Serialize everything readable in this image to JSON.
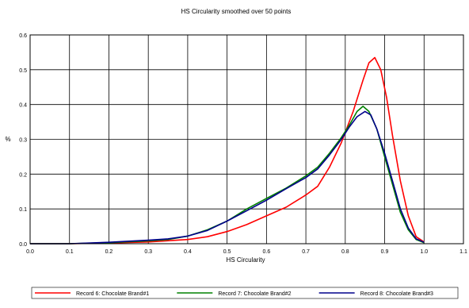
{
  "chart_data": {
    "type": "line",
    "title": "HS Circularity smoothed over 50 points",
    "xlabel": "HS Circularity",
    "ylabel": "%",
    "xlim": [
      0,
      1.1
    ],
    "ylim": [
      0,
      0.6
    ],
    "x_ticks": [
      "0.0",
      "0.1",
      "0.2",
      "0.3",
      "0.4",
      "0.5",
      "0.6",
      "0.7",
      "0.8",
      "0.9",
      "1.0",
      "1.1"
    ],
    "y_ticks": [
      "0.0",
      "0.1",
      "0.2",
      "0.3",
      "0.4",
      "0.5",
      "0.6"
    ],
    "grid": true,
    "legend_position": "bottom",
    "series": [
      {
        "name": "Record 6: Chocolate Brand#1",
        "color": "#ff0000",
        "points": [
          [
            0.0,
            0.0
          ],
          [
            0.1,
            0.0
          ],
          [
            0.2,
            0.002
          ],
          [
            0.3,
            0.005
          ],
          [
            0.4,
            0.012
          ],
          [
            0.45,
            0.02
          ],
          [
            0.5,
            0.035
          ],
          [
            0.55,
            0.055
          ],
          [
            0.6,
            0.08
          ],
          [
            0.65,
            0.105
          ],
          [
            0.7,
            0.14
          ],
          [
            0.73,
            0.165
          ],
          [
            0.76,
            0.22
          ],
          [
            0.79,
            0.29
          ],
          [
            0.82,
            0.38
          ],
          [
            0.845,
            0.47
          ],
          [
            0.86,
            0.52
          ],
          [
            0.875,
            0.535
          ],
          [
            0.89,
            0.5
          ],
          [
            0.905,
            0.42
          ],
          [
            0.92,
            0.31
          ],
          [
            0.94,
            0.18
          ],
          [
            0.96,
            0.08
          ],
          [
            0.98,
            0.02
          ],
          [
            1.0,
            0.005
          ]
        ]
      },
      {
        "name": "Record 7: Chocolate Brand#2",
        "color": "#008000",
        "points": [
          [
            0.0,
            0.0
          ],
          [
            0.1,
            0.0
          ],
          [
            0.2,
            0.003
          ],
          [
            0.3,
            0.008
          ],
          [
            0.35,
            0.012
          ],
          [
            0.4,
            0.022
          ],
          [
            0.45,
            0.04
          ],
          [
            0.5,
            0.065
          ],
          [
            0.55,
            0.1
          ],
          [
            0.6,
            0.13
          ],
          [
            0.65,
            0.16
          ],
          [
            0.7,
            0.195
          ],
          [
            0.73,
            0.22
          ],
          [
            0.76,
            0.26
          ],
          [
            0.79,
            0.305
          ],
          [
            0.81,
            0.34
          ],
          [
            0.83,
            0.38
          ],
          [
            0.845,
            0.395
          ],
          [
            0.86,
            0.38
          ],
          [
            0.88,
            0.33
          ],
          [
            0.9,
            0.25
          ],
          [
            0.92,
            0.17
          ],
          [
            0.94,
            0.09
          ],
          [
            0.96,
            0.04
          ],
          [
            0.98,
            0.012
          ],
          [
            1.0,
            0.003
          ]
        ]
      },
      {
        "name": "Record 8: Chocolate Brand#3",
        "color": "#00008b",
        "points": [
          [
            0.0,
            0.0
          ],
          [
            0.1,
            0.0
          ],
          [
            0.2,
            0.004
          ],
          [
            0.3,
            0.01
          ],
          [
            0.35,
            0.014
          ],
          [
            0.4,
            0.022
          ],
          [
            0.45,
            0.038
          ],
          [
            0.5,
            0.065
          ],
          [
            0.55,
            0.095
          ],
          [
            0.6,
            0.125
          ],
          [
            0.65,
            0.158
          ],
          [
            0.7,
            0.19
          ],
          [
            0.73,
            0.215
          ],
          [
            0.76,
            0.255
          ],
          [
            0.79,
            0.3
          ],
          [
            0.81,
            0.335
          ],
          [
            0.83,
            0.365
          ],
          [
            0.85,
            0.38
          ],
          [
            0.865,
            0.37
          ],
          [
            0.88,
            0.33
          ],
          [
            0.9,
            0.26
          ],
          [
            0.92,
            0.18
          ],
          [
            0.94,
            0.1
          ],
          [
            0.96,
            0.045
          ],
          [
            0.98,
            0.014
          ],
          [
            1.0,
            0.004
          ]
        ]
      }
    ]
  }
}
